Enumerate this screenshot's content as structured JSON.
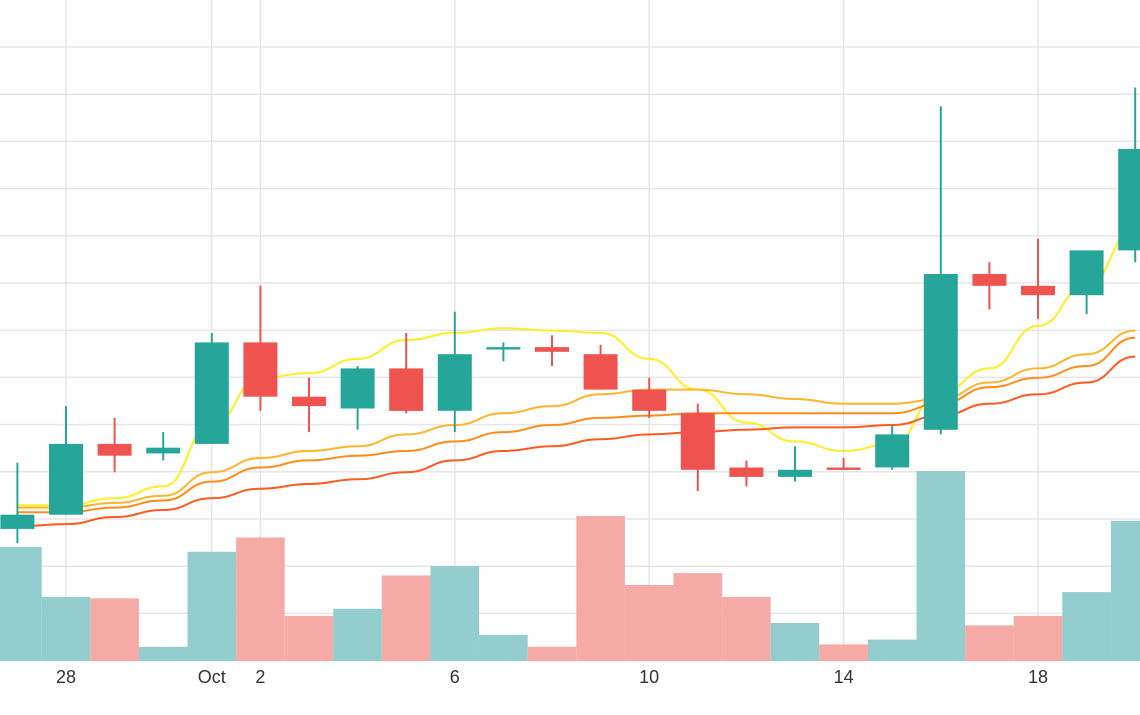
{
  "chart_data": {
    "type": "candlestick",
    "x_tick_labels": [
      {
        "date": "2023-09-28",
        "label": "28"
      },
      {
        "date": "2023-10-01",
        "label": "Oct"
      },
      {
        "date": "2023-10-02",
        "label": "2"
      },
      {
        "date": "2023-10-06",
        "label": "6"
      },
      {
        "date": "2023-10-10",
        "label": "10"
      },
      {
        "date": "2023-10-14",
        "label": "14"
      },
      {
        "date": "2023-10-18",
        "label": "18"
      }
    ],
    "price_ylim": [
      -0.4,
      13.2
    ],
    "volume_ylim": [
      0,
      4.0
    ],
    "grid": true,
    "legend": "none",
    "colors": {
      "up": "#26a69a",
      "down": "#ef5350",
      "up_volume": "#93cdcd",
      "down_volume": "#f5aaa6",
      "grid": "#e6e6e6",
      "ma_lines": [
        "#ffee22",
        "#ffb52b",
        "#ff8c1a",
        "#ff5a1f"
      ]
    },
    "candles": [
      {
        "date": "2023-09-27",
        "open": 2.4,
        "high": 3.8,
        "low": 2.1,
        "close": 2.7,
        "volume": 2.4
      },
      {
        "date": "2023-09-28",
        "open": 2.7,
        "high": 5.0,
        "low": 2.7,
        "close": 4.2,
        "volume": 1.35
      },
      {
        "date": "2023-09-29",
        "open": 4.2,
        "high": 4.75,
        "low": 3.6,
        "close": 3.95,
        "volume": 1.32
      },
      {
        "date": "2023-09-30",
        "open": 4.0,
        "high": 4.45,
        "low": 3.85,
        "close": 4.12,
        "volume": 0.3
      },
      {
        "date": "2023-10-01",
        "open": 4.2,
        "high": 6.55,
        "low": 4.2,
        "close": 6.35,
        "volume": 2.3
      },
      {
        "date": "2023-10-02",
        "open": 6.35,
        "high": 7.55,
        "low": 4.9,
        "close": 5.2,
        "volume": 2.6
      },
      {
        "date": "2023-10-03",
        "open": 5.2,
        "high": 5.6,
        "low": 4.45,
        "close": 5.0,
        "volume": 0.95
      },
      {
        "date": "2023-10-04",
        "open": 4.95,
        "high": 5.85,
        "low": 4.5,
        "close": 5.8,
        "volume": 1.1
      },
      {
        "date": "2023-10-05",
        "open": 5.8,
        "high": 6.55,
        "low": 4.85,
        "close": 4.9,
        "volume": 1.8
      },
      {
        "date": "2023-10-06",
        "open": 4.9,
        "high": 7.0,
        "low": 4.45,
        "close": 6.1,
        "volume": 2.0
      },
      {
        "date": "2023-10-07",
        "open": 6.2,
        "high": 6.35,
        "low": 5.95,
        "close": 6.25,
        "volume": 0.55
      },
      {
        "date": "2023-10-08",
        "open": 6.25,
        "high": 6.5,
        "low": 5.85,
        "close": 6.15,
        "volume": 0.3
      },
      {
        "date": "2023-10-09",
        "open": 6.1,
        "high": 6.3,
        "low": 5.35,
        "close": 5.35,
        "volume": 3.05
      },
      {
        "date": "2023-10-10",
        "open": 5.35,
        "high": 5.6,
        "low": 4.75,
        "close": 4.9,
        "volume": 1.6
      },
      {
        "date": "2023-10-11",
        "open": 4.85,
        "high": 5.05,
        "low": 3.2,
        "close": 3.65,
        "volume": 1.85
      },
      {
        "date": "2023-10-12",
        "open": 3.7,
        "high": 3.85,
        "low": 3.3,
        "close": 3.5,
        "volume": 1.35
      },
      {
        "date": "2023-10-13",
        "open": 3.5,
        "high": 4.15,
        "low": 3.4,
        "close": 3.65,
        "volume": 0.8
      },
      {
        "date": "2023-10-14",
        "open": 3.7,
        "high": 3.9,
        "low": 3.65,
        "close": 3.65,
        "volume": 0.35
      },
      {
        "date": "2023-10-15",
        "open": 3.7,
        "high": 4.6,
        "low": 3.65,
        "close": 4.4,
        "volume": 0.45
      },
      {
        "date": "2023-10-16",
        "open": 4.5,
        "high": 11.35,
        "low": 4.4,
        "close": 7.8,
        "volume": 4.0
      },
      {
        "date": "2023-10-17",
        "open": 7.8,
        "high": 8.05,
        "low": 7.05,
        "close": 7.55,
        "volume": 0.75
      },
      {
        "date": "2023-10-18",
        "open": 7.55,
        "high": 8.55,
        "low": 6.85,
        "close": 7.35,
        "volume": 0.95
      },
      {
        "date": "2023-10-19",
        "open": 7.35,
        "high": 8.25,
        "low": 6.95,
        "close": 8.3,
        "volume": 1.45
      },
      {
        "date": "2023-10-20",
        "open": 8.3,
        "high": 11.75,
        "low": 8.05,
        "close": 10.45,
        "volume": 2.95
      }
    ],
    "moving_averages": [
      {
        "values": [
          2.9,
          2.9,
          3.05,
          3.3,
          4.6,
          5.6,
          5.7,
          6.0,
          6.4,
          6.55,
          6.65,
          6.6,
          6.55,
          6.0,
          5.35,
          4.65,
          4.25,
          4.05,
          4.2,
          5.3,
          5.8,
          6.7,
          7.55,
          8.75
        ]
      },
      {
        "values": [
          2.85,
          2.85,
          2.95,
          3.1,
          3.6,
          3.9,
          4.05,
          4.15,
          4.4,
          4.6,
          4.85,
          5.0,
          5.25,
          5.35,
          5.35,
          5.25,
          5.15,
          5.05,
          5.05,
          5.15,
          5.5,
          5.8,
          6.1,
          6.6
        ]
      },
      {
        "values": [
          2.75,
          2.75,
          2.85,
          3.0,
          3.4,
          3.7,
          3.85,
          3.95,
          4.05,
          4.25,
          4.45,
          4.6,
          4.75,
          4.8,
          4.85,
          4.85,
          4.85,
          4.85,
          4.85,
          5.05,
          5.4,
          5.6,
          5.85,
          6.45
        ]
      },
      {
        "values": [
          2.45,
          2.5,
          2.65,
          2.8,
          3.05,
          3.25,
          3.35,
          3.45,
          3.6,
          3.85,
          4.05,
          4.15,
          4.3,
          4.4,
          4.45,
          4.5,
          4.55,
          4.55,
          4.6,
          4.8,
          5.05,
          5.25,
          5.5,
          6.05
        ]
      }
    ]
  }
}
